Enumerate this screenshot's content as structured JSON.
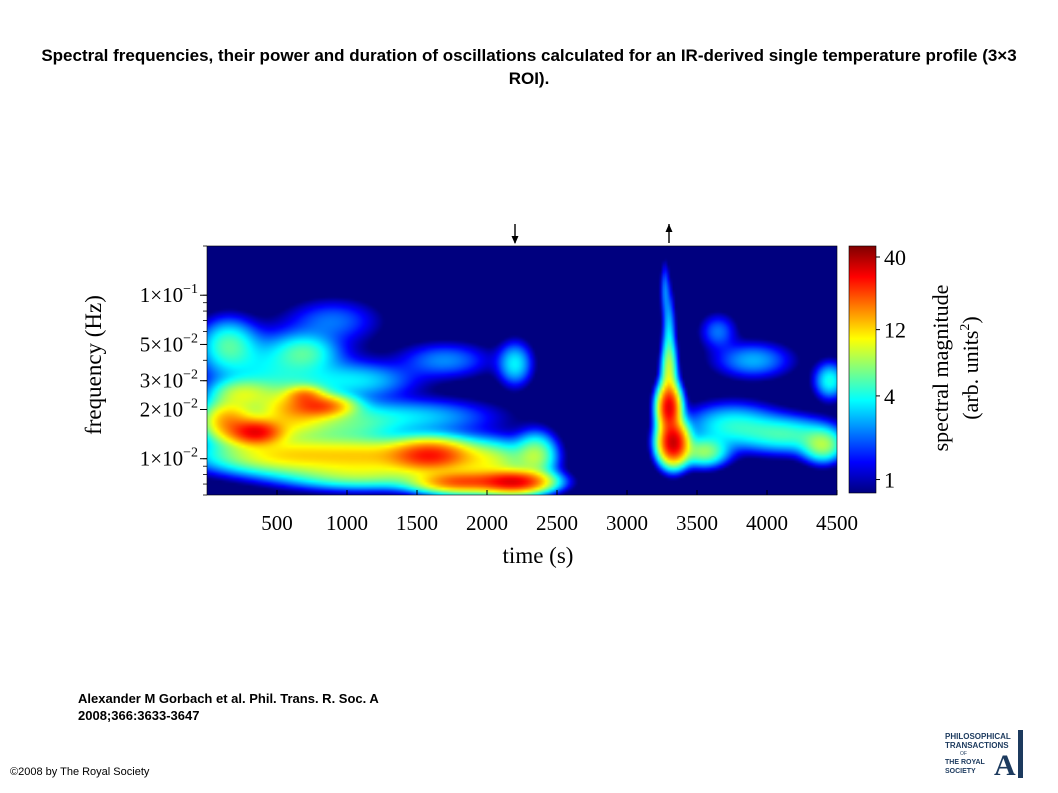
{
  "slide": {
    "title": "Spectral frequencies, their power and duration of oscillations calculated for an IR-derived single temperature profile (3×3 ROI).",
    "citation_line1": "Alexander M Gorbach et al. Phil. Trans. R. Soc. A",
    "citation_line2": "2008;366:3633-3647",
    "copyright": "©2008 by The Royal Society",
    "logo_lines": [
      "PHILOSOPHICAL",
      "TRANSACTIONS",
      "OF",
      "THE ROYAL",
      "SOCIETY",
      "A"
    ]
  },
  "chart_data": {
    "type": "heatmap",
    "title": "",
    "xlabel": "time (s)",
    "ylabel": "frequency (Hz)",
    "xlim": [
      0,
      4500
    ],
    "ylim": [
      0.006,
      0.2
    ],
    "yscale": "log",
    "x_ticks": [
      500,
      1000,
      1500,
      2000,
      2500,
      3000,
      3500,
      4000,
      4500
    ],
    "y_ticks": [
      {
        "value": 0.01,
        "mant": "1×10",
        "exp": "−2"
      },
      {
        "value": 0.02,
        "mant": "2×10",
        "exp": "−2"
      },
      {
        "value": 0.03,
        "mant": "3×10",
        "exp": "−2"
      },
      {
        "value": 0.05,
        "mant": "5×10",
        "exp": "−2"
      },
      {
        "value": 0.1,
        "mant": "1×10",
        "exp": "−1"
      }
    ],
    "colorbar": {
      "label_line1": "spectral magnitude",
      "label_line2_main": "(arb. units",
      "label_line2_sup": "2",
      "label_line2_end": ")",
      "ticks": [
        40,
        12,
        4,
        1
      ],
      "scale": "log",
      "colors": [
        "#00007f",
        "#0000ff",
        "#0080ff",
        "#00ffff",
        "#80ff80",
        "#ffff00",
        "#ff8000",
        "#ff0000",
        "#7f0000"
      ]
    },
    "background_value": 0.5,
    "markers": [
      {
        "time": 2200,
        "direction": "down"
      },
      {
        "time": 3300,
        "direction": "up"
      }
    ],
    "blobs": [
      {
        "t": 350,
        "f": 0.0145,
        "w": 170,
        "h": 0.07,
        "v": 26
      },
      {
        "t": 150,
        "f": 0.017,
        "w": 170,
        "h": 0.11,
        "v": 14
      },
      {
        "t": 600,
        "f": 0.019,
        "w": 260,
        "h": 0.14,
        "v": 11
      },
      {
        "t": 820,
        "f": 0.021,
        "w": 200,
        "h": 0.06,
        "v": 16
      },
      {
        "t": 700,
        "f": 0.0245,
        "w": 120,
        "h": 0.05,
        "v": 10
      },
      {
        "t": 250,
        "f": 0.025,
        "w": 200,
        "h": 0.08,
        "v": 6
      },
      {
        "t": 550,
        "f": 0.0105,
        "w": 500,
        "h": 0.1,
        "v": 10
      },
      {
        "t": 1200,
        "f": 0.0105,
        "w": 450,
        "h": 0.09,
        "v": 9
      },
      {
        "t": 1600,
        "f": 0.0105,
        "w": 250,
        "h": 0.09,
        "v": 22
      },
      {
        "t": 2000,
        "f": 0.0095,
        "w": 280,
        "h": 0.12,
        "v": 8
      },
      {
        "t": 1800,
        "f": 0.0072,
        "w": 280,
        "h": 0.06,
        "v": 18
      },
      {
        "t": 2200,
        "f": 0.0072,
        "w": 220,
        "h": 0.06,
        "v": 28
      },
      {
        "t": 1100,
        "f": 0.008,
        "w": 500,
        "h": 0.08,
        "v": 6
      },
      {
        "t": 2350,
        "f": 0.0105,
        "w": 130,
        "h": 0.12,
        "v": 6
      },
      {
        "t": 1000,
        "f": 0.016,
        "w": 350,
        "h": 0.12,
        "v": 4
      },
      {
        "t": 1500,
        "f": 0.018,
        "w": 500,
        "h": 0.1,
        "v": 2.5
      },
      {
        "t": 500,
        "f": 0.035,
        "w": 450,
        "h": 0.2,
        "v": 3
      },
      {
        "t": 150,
        "f": 0.05,
        "w": 180,
        "h": 0.14,
        "v": 4
      },
      {
        "t": 700,
        "f": 0.045,
        "w": 200,
        "h": 0.1,
        "v": 3
      },
      {
        "t": 1100,
        "f": 0.03,
        "w": 350,
        "h": 0.1,
        "v": 2.5
      },
      {
        "t": 2200,
        "f": 0.038,
        "w": 110,
        "h": 0.12,
        "v": 3
      },
      {
        "t": 900,
        "f": 0.07,
        "w": 300,
        "h": 0.12,
        "v": 1.5
      },
      {
        "t": 1700,
        "f": 0.04,
        "w": 300,
        "h": 0.1,
        "v": 1.8
      },
      {
        "t": 3300,
        "f": 0.0205,
        "w": 70,
        "h": 0.12,
        "v": 30
      },
      {
        "t": 3330,
        "f": 0.0125,
        "w": 90,
        "h": 0.11,
        "v": 34
      },
      {
        "t": 3300,
        "f": 0.034,
        "w": 50,
        "h": 0.16,
        "v": 7
      },
      {
        "t": 3300,
        "f": 0.06,
        "w": 40,
        "h": 0.22,
        "v": 2.5
      },
      {
        "t": 3270,
        "f": 0.11,
        "w": 30,
        "h": 0.15,
        "v": 1.5
      },
      {
        "t": 3550,
        "f": 0.011,
        "w": 150,
        "h": 0.08,
        "v": 6
      },
      {
        "t": 3750,
        "f": 0.016,
        "w": 300,
        "h": 0.12,
        "v": 3.5
      },
      {
        "t": 4150,
        "f": 0.014,
        "w": 300,
        "h": 0.1,
        "v": 4
      },
      {
        "t": 4400,
        "f": 0.012,
        "w": 130,
        "h": 0.09,
        "v": 6
      },
      {
        "t": 4450,
        "f": 0.03,
        "w": 100,
        "h": 0.1,
        "v": 3.5
      },
      {
        "t": 3900,
        "f": 0.04,
        "w": 250,
        "h": 0.1,
        "v": 2.2
      },
      {
        "t": 3650,
        "f": 0.06,
        "w": 120,
        "h": 0.1,
        "v": 1.6
      }
    ]
  }
}
